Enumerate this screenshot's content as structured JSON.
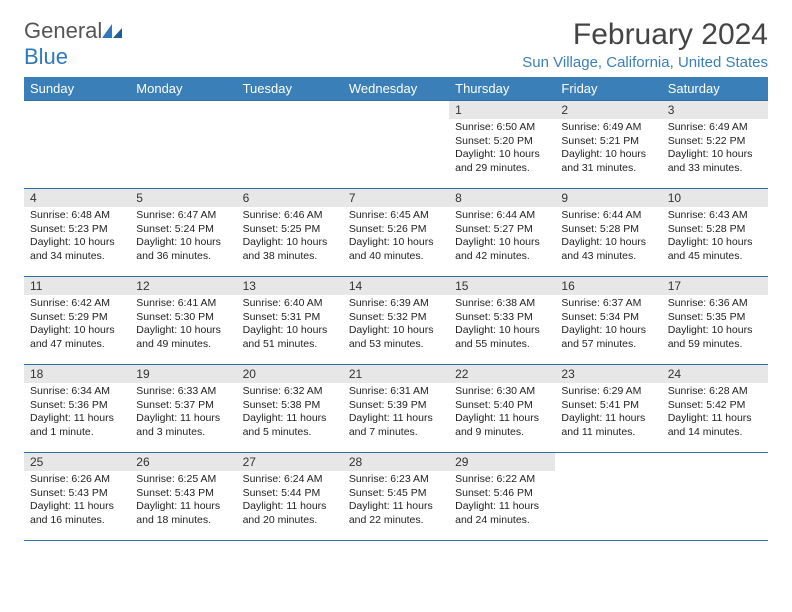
{
  "logo": {
    "text_general": "General",
    "text_blue": "Blue"
  },
  "title": "February 2024",
  "location": "Sun Village, California, United States",
  "header_bg": "#3a7fb8",
  "daynum_bg": "#e7e7e7",
  "border_color": "#2f6fa5",
  "weekdays": [
    "Sunday",
    "Monday",
    "Tuesday",
    "Wednesday",
    "Thursday",
    "Friday",
    "Saturday"
  ],
  "weeks": [
    [
      {
        "n": "",
        "sr": "",
        "ss": "",
        "dl": ""
      },
      {
        "n": "",
        "sr": "",
        "ss": "",
        "dl": ""
      },
      {
        "n": "",
        "sr": "",
        "ss": "",
        "dl": ""
      },
      {
        "n": "",
        "sr": "",
        "ss": "",
        "dl": ""
      },
      {
        "n": "1",
        "sr": "Sunrise: 6:50 AM",
        "ss": "Sunset: 5:20 PM",
        "dl": "Daylight: 10 hours and 29 minutes."
      },
      {
        "n": "2",
        "sr": "Sunrise: 6:49 AM",
        "ss": "Sunset: 5:21 PM",
        "dl": "Daylight: 10 hours and 31 minutes."
      },
      {
        "n": "3",
        "sr": "Sunrise: 6:49 AM",
        "ss": "Sunset: 5:22 PM",
        "dl": "Daylight: 10 hours and 33 minutes."
      }
    ],
    [
      {
        "n": "4",
        "sr": "Sunrise: 6:48 AM",
        "ss": "Sunset: 5:23 PM",
        "dl": "Daylight: 10 hours and 34 minutes."
      },
      {
        "n": "5",
        "sr": "Sunrise: 6:47 AM",
        "ss": "Sunset: 5:24 PM",
        "dl": "Daylight: 10 hours and 36 minutes."
      },
      {
        "n": "6",
        "sr": "Sunrise: 6:46 AM",
        "ss": "Sunset: 5:25 PM",
        "dl": "Daylight: 10 hours and 38 minutes."
      },
      {
        "n": "7",
        "sr": "Sunrise: 6:45 AM",
        "ss": "Sunset: 5:26 PM",
        "dl": "Daylight: 10 hours and 40 minutes."
      },
      {
        "n": "8",
        "sr": "Sunrise: 6:44 AM",
        "ss": "Sunset: 5:27 PM",
        "dl": "Daylight: 10 hours and 42 minutes."
      },
      {
        "n": "9",
        "sr": "Sunrise: 6:44 AM",
        "ss": "Sunset: 5:28 PM",
        "dl": "Daylight: 10 hours and 43 minutes."
      },
      {
        "n": "10",
        "sr": "Sunrise: 6:43 AM",
        "ss": "Sunset: 5:28 PM",
        "dl": "Daylight: 10 hours and 45 minutes."
      }
    ],
    [
      {
        "n": "11",
        "sr": "Sunrise: 6:42 AM",
        "ss": "Sunset: 5:29 PM",
        "dl": "Daylight: 10 hours and 47 minutes."
      },
      {
        "n": "12",
        "sr": "Sunrise: 6:41 AM",
        "ss": "Sunset: 5:30 PM",
        "dl": "Daylight: 10 hours and 49 minutes."
      },
      {
        "n": "13",
        "sr": "Sunrise: 6:40 AM",
        "ss": "Sunset: 5:31 PM",
        "dl": "Daylight: 10 hours and 51 minutes."
      },
      {
        "n": "14",
        "sr": "Sunrise: 6:39 AM",
        "ss": "Sunset: 5:32 PM",
        "dl": "Daylight: 10 hours and 53 minutes."
      },
      {
        "n": "15",
        "sr": "Sunrise: 6:38 AM",
        "ss": "Sunset: 5:33 PM",
        "dl": "Daylight: 10 hours and 55 minutes."
      },
      {
        "n": "16",
        "sr": "Sunrise: 6:37 AM",
        "ss": "Sunset: 5:34 PM",
        "dl": "Daylight: 10 hours and 57 minutes."
      },
      {
        "n": "17",
        "sr": "Sunrise: 6:36 AM",
        "ss": "Sunset: 5:35 PM",
        "dl": "Daylight: 10 hours and 59 minutes."
      }
    ],
    [
      {
        "n": "18",
        "sr": "Sunrise: 6:34 AM",
        "ss": "Sunset: 5:36 PM",
        "dl": "Daylight: 11 hours and 1 minute."
      },
      {
        "n": "19",
        "sr": "Sunrise: 6:33 AM",
        "ss": "Sunset: 5:37 PM",
        "dl": "Daylight: 11 hours and 3 minutes."
      },
      {
        "n": "20",
        "sr": "Sunrise: 6:32 AM",
        "ss": "Sunset: 5:38 PM",
        "dl": "Daylight: 11 hours and 5 minutes."
      },
      {
        "n": "21",
        "sr": "Sunrise: 6:31 AM",
        "ss": "Sunset: 5:39 PM",
        "dl": "Daylight: 11 hours and 7 minutes."
      },
      {
        "n": "22",
        "sr": "Sunrise: 6:30 AM",
        "ss": "Sunset: 5:40 PM",
        "dl": "Daylight: 11 hours and 9 minutes."
      },
      {
        "n": "23",
        "sr": "Sunrise: 6:29 AM",
        "ss": "Sunset: 5:41 PM",
        "dl": "Daylight: 11 hours and 11 minutes."
      },
      {
        "n": "24",
        "sr": "Sunrise: 6:28 AM",
        "ss": "Sunset: 5:42 PM",
        "dl": "Daylight: 11 hours and 14 minutes."
      }
    ],
    [
      {
        "n": "25",
        "sr": "Sunrise: 6:26 AM",
        "ss": "Sunset: 5:43 PM",
        "dl": "Daylight: 11 hours and 16 minutes."
      },
      {
        "n": "26",
        "sr": "Sunrise: 6:25 AM",
        "ss": "Sunset: 5:43 PM",
        "dl": "Daylight: 11 hours and 18 minutes."
      },
      {
        "n": "27",
        "sr": "Sunrise: 6:24 AM",
        "ss": "Sunset: 5:44 PM",
        "dl": "Daylight: 11 hours and 20 minutes."
      },
      {
        "n": "28",
        "sr": "Sunrise: 6:23 AM",
        "ss": "Sunset: 5:45 PM",
        "dl": "Daylight: 11 hours and 22 minutes."
      },
      {
        "n": "29",
        "sr": "Sunrise: 6:22 AM",
        "ss": "Sunset: 5:46 PM",
        "dl": "Daylight: 11 hours and 24 minutes."
      },
      {
        "n": "",
        "sr": "",
        "ss": "",
        "dl": ""
      },
      {
        "n": "",
        "sr": "",
        "ss": "",
        "dl": ""
      }
    ]
  ]
}
